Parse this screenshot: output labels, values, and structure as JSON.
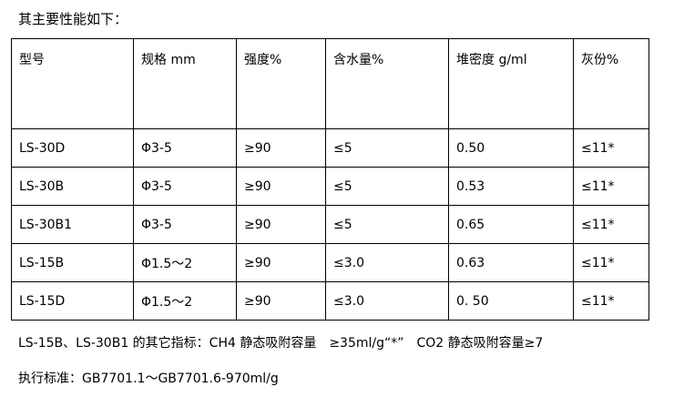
{
  "intro": "其主要性能如下：",
  "table": {
    "headers": [
      "型号",
      "规格 mm",
      "强度%",
      "含水量%",
      "堆密度 g/ml",
      "灰份%"
    ],
    "rows": [
      [
        "LS-30D",
        "Φ3-5",
        "≥90",
        "≤5",
        "0.50",
        "≤11*"
      ],
      [
        "LS-30B",
        "Φ3-5",
        "≥90",
        "≤5",
        "0.53",
        "≤11*"
      ],
      [
        "LS-30B1",
        "Φ3-5",
        "≥90",
        "≤5",
        "0.65",
        "≤11*"
      ],
      [
        "LS-15B",
        "Φ1.5～2",
        "≥90",
        "≤3.0",
        "0.63",
        "≤11*"
      ],
      [
        "LS-15D",
        "Φ1.5～2",
        "≥90",
        "≤3.0",
        "0. 50",
        "≤11*"
      ]
    ]
  },
  "notes": {
    "other_indicators": "LS-15B、LS-30B1 的其它指标：CH4 静态吸附容量　≥35ml/g“*”　CO2 静态吸附容量≥7",
    "standard": "执行标准：GB7701.1～GB7701.6-970ml/g"
  }
}
